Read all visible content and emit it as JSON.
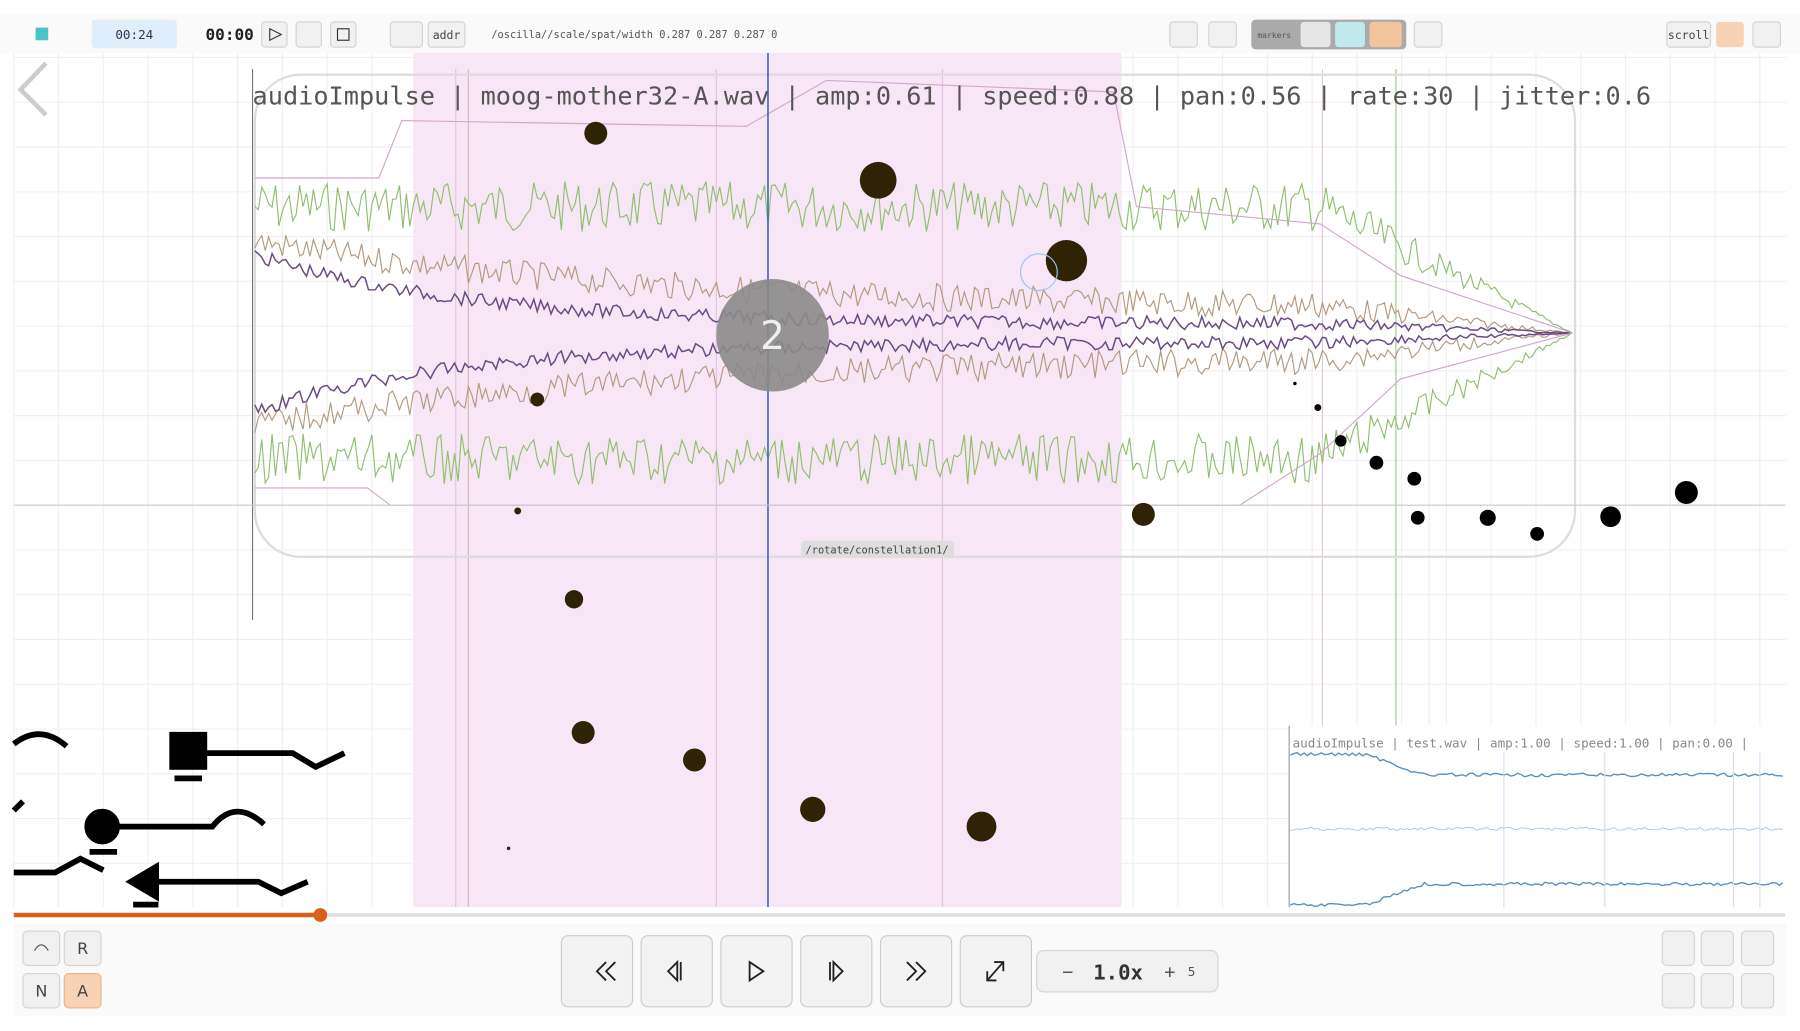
{
  "toolbar": {
    "time": "00:24",
    "clock": "00:00",
    "addr": "addr",
    "osc_path": "/oscilla//scale/spat/width 0.287 0.287 0.287 0",
    "markers": "markers",
    "scroll": "scroll"
  },
  "main": {
    "header": "audioImpulse | moog-mother32-A.wav | amp:0.61 | speed:0.88 | pan:0.56 | rate:30 | jitter:0.6",
    "badge": "2",
    "tag": "/rotate/constellation1/"
  },
  "inset": {
    "header": "audioImpulse | test.wav | amp:1.00 | speed:1.00 | pan:0.00 |"
  },
  "controls": {
    "left_buttons": [
      "R",
      "N",
      "A"
    ],
    "speed": "1.0x",
    "minus": "−",
    "plus": "+",
    "step": "5"
  }
}
